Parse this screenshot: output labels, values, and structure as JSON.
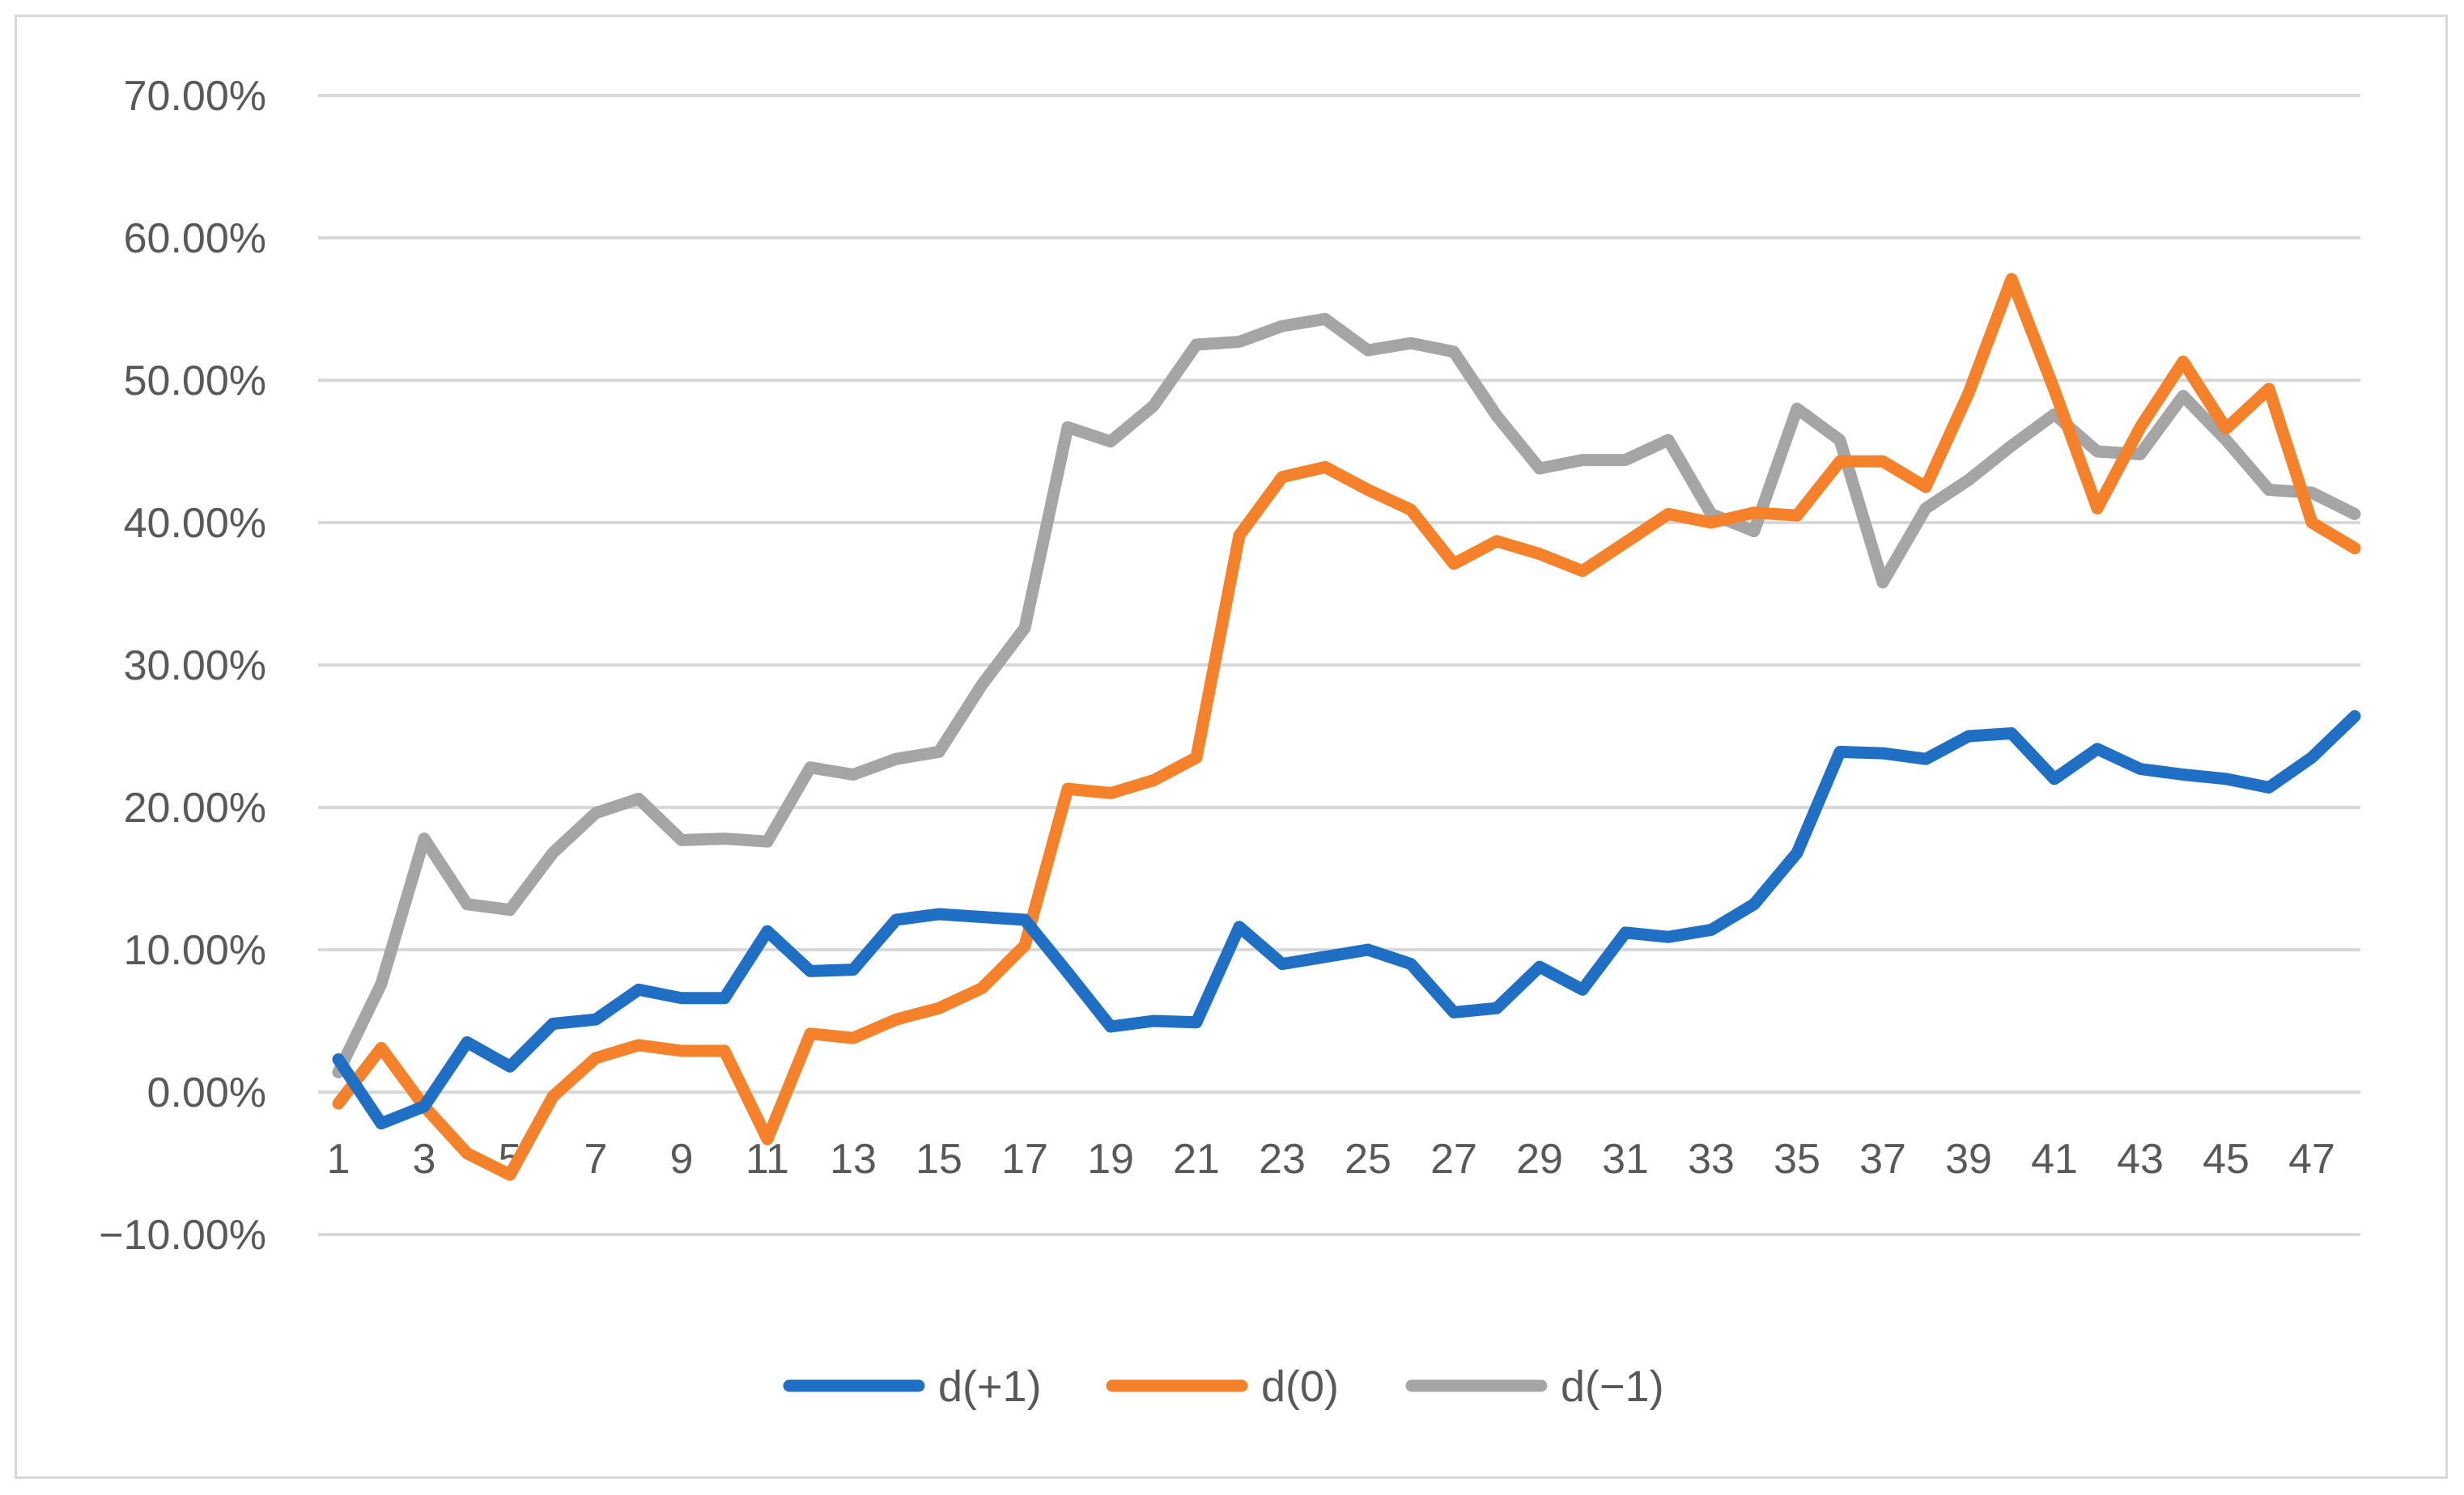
{
  "chart_data": {
    "type": "line",
    "title": "",
    "xlabel": "",
    "ylabel": "",
    "x": [
      1,
      2,
      3,
      4,
      5,
      6,
      7,
      8,
      9,
      10,
      11,
      12,
      13,
      14,
      15,
      16,
      17,
      18,
      19,
      20,
      21,
      22,
      23,
      24,
      25,
      26,
      27,
      28,
      29,
      30,
      31,
      32,
      33,
      34,
      35,
      36,
      37,
      38,
      39,
      40,
      41,
      42,
      43,
      44,
      45,
      46,
      47,
      48
    ],
    "x_tick_labels": [
      "1",
      "3",
      "5",
      "7",
      "9",
      "11",
      "13",
      "15",
      "17",
      "19",
      "21",
      "23",
      "25",
      "27",
      "29",
      "31",
      "33",
      "35",
      "37",
      "39",
      "41",
      "43",
      "45",
      "47"
    ],
    "x_tick_values": [
      1,
      3,
      5,
      7,
      9,
      11,
      13,
      15,
      17,
      19,
      21,
      23,
      25,
      27,
      29,
      31,
      33,
      35,
      37,
      39,
      41,
      43,
      45,
      47
    ],
    "y_tick_labels": [
      "70.00%",
      "60.00%",
      "50.00%",
      "40.00%",
      "30.00%",
      "20.00%",
      "10.00%",
      "0.00%",
      "−10.00%"
    ],
    "y_tick_values": [
      70,
      60,
      50,
      40,
      30,
      20,
      10,
      0,
      -10
    ],
    "ylim": [
      -10,
      70
    ],
    "y_unit": "percent",
    "grid": true,
    "legend_position": "bottom",
    "series": [
      {
        "name": "d(+1)",
        "color": "#1f6fc5",
        "values": [
          2.3,
          -2.2,
          -1.0,
          3.5,
          1.8,
          4.8,
          5.1,
          7.2,
          6.6,
          6.6,
          11.3,
          8.5,
          8.6,
          12.1,
          12.5,
          12.3,
          12.1,
          8.4,
          4.6,
          5.0,
          4.9,
          11.6,
          9.0,
          9.5,
          10.0,
          9.0,
          5.6,
          5.9,
          8.8,
          7.2,
          11.2,
          10.9,
          11.4,
          13.2,
          16.8,
          23.9,
          23.8,
          23.4,
          25.0,
          25.2,
          22.0,
          24.1,
          22.7,
          22.3,
          22.0,
          21.4,
          23.5,
          26.4
        ]
      },
      {
        "name": "d(0)",
        "color": "#f5822a",
        "values": [
          -0.8,
          3.1,
          -1.0,
          -4.3,
          -5.8,
          -0.3,
          2.4,
          3.3,
          2.9,
          2.9,
          -3.3,
          4.1,
          3.8,
          5.1,
          5.9,
          7.3,
          10.3,
          21.3,
          21.0,
          21.9,
          23.5,
          39.1,
          43.2,
          43.9,
          42.3,
          40.9,
          37.1,
          38.7,
          37.8,
          36.6,
          38.6,
          40.6,
          40.0,
          40.7,
          40.5,
          44.3,
          44.3,
          42.5,
          49.1,
          57.1,
          49.3,
          41.0,
          46.7,
          51.3,
          46.6,
          49.4,
          40.0,
          38.2
        ]
      },
      {
        "name": "d(−1)",
        "color": "#a5a5a5",
        "values": [
          1.4,
          7.6,
          17.8,
          13.2,
          12.8,
          16.8,
          19.6,
          20.6,
          17.7,
          17.8,
          17.6,
          22.8,
          22.3,
          23.4,
          23.9,
          28.6,
          32.6,
          46.7,
          45.7,
          48.2,
          52.5,
          52.7,
          53.8,
          54.3,
          52.1,
          52.6,
          52.0,
          47.5,
          43.8,
          44.4,
          44.4,
          45.8,
          40.6,
          39.4,
          48.0,
          45.8,
          35.8,
          41.0,
          43.0,
          45.4,
          47.6,
          45.0,
          44.8,
          48.9,
          45.8,
          42.3,
          42.1,
          40.6
        ]
      }
    ]
  }
}
